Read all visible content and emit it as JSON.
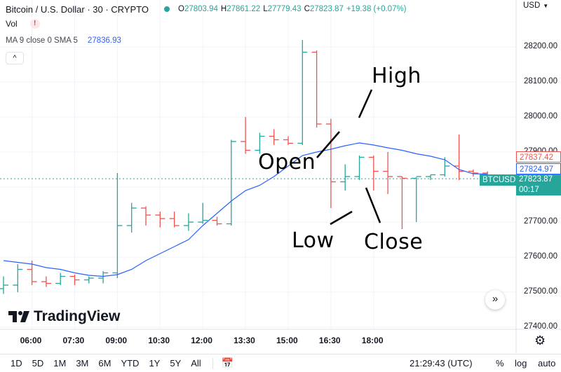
{
  "header": {
    "symbol_title": "Bitcoin / U.S. Dollar · 30 · CRYPTO",
    "ohlc": [
      {
        "key": "O",
        "value": "27803.94"
      },
      {
        "key": "H",
        "value": "27861.22"
      },
      {
        "key": "L",
        "value": "27779.43"
      },
      {
        "key": "C",
        "value": "27823.87"
      }
    ],
    "change": "+19.38 (+0.07%)",
    "volume_label": "Vol",
    "volume_warning": "!",
    "ma_label": "MA 9 close 0 SMA 5",
    "ma_value": "27836.93",
    "collapse_icon": "^"
  },
  "currency": "USD",
  "tags": {
    "last_price": "27837.42",
    "ma_price": "27824.97",
    "symbol": "BTCUSD",
    "current_price": "27823.87",
    "countdown": "00:17"
  },
  "annotations": {
    "high": "High",
    "open": "Open",
    "low": "Low",
    "close": "Close"
  },
  "brand": "TradingView",
  "bottom_bar": {
    "ranges": [
      "1D",
      "5D",
      "1M",
      "3M",
      "6M",
      "YTD",
      "1Y",
      "5Y",
      "All"
    ],
    "clock": "21:29:43 (UTC)",
    "percent": "%",
    "log": "log",
    "auto": "auto"
  },
  "colors": {
    "up": "#26a69a",
    "down": "#ef5350",
    "ma_line": "#2962ff",
    "grid": "#f0f3fa"
  },
  "chart_data": {
    "type": "ohlc",
    "series_name": "BTCUSD",
    "price_axis": {
      "ticks": [
        27400,
        27500,
        27600,
        27700,
        27800,
        27900,
        28000,
        28100,
        28200
      ],
      "tick_labels": [
        "27400.00",
        "27500.00",
        "27600.00",
        "27700.00",
        "27800.00",
        "27900.00",
        "28000.00",
        "28100.00",
        "28200.00"
      ],
      "range": [
        27385,
        28290
      ]
    },
    "time_axis": {
      "labels": [
        "06:00",
        "07:30",
        "09:00",
        "10:30",
        "12:00",
        "13:30",
        "15:00",
        "16:30",
        "18:00"
      ],
      "label_index": [
        2,
        5,
        8,
        11,
        14,
        17,
        20,
        23,
        26
      ]
    },
    "bars": [
      {
        "o": 27510,
        "h": 27545,
        "l": 27495,
        "c": 27520
      },
      {
        "o": 27520,
        "h": 27580,
        "l": 27500,
        "c": 27565
      },
      {
        "o": 27565,
        "h": 27590,
        "l": 27520,
        "c": 27530
      },
      {
        "o": 27530,
        "h": 27545,
        "l": 27515,
        "c": 27525
      },
      {
        "o": 27525,
        "h": 27555,
        "l": 27520,
        "c": 27545
      },
      {
        "o": 27545,
        "h": 27550,
        "l": 27520,
        "c": 27535
      },
      {
        "o": 27535,
        "h": 27545,
        "l": 27525,
        "c": 27540
      },
      {
        "o": 27540,
        "h": 27560,
        "l": 27525,
        "c": 27555
      },
      {
        "o": 27555,
        "h": 27840,
        "l": 27540,
        "c": 27690
      },
      {
        "o": 27690,
        "h": 27755,
        "l": 27670,
        "c": 27740
      },
      {
        "o": 27740,
        "h": 27745,
        "l": 27690,
        "c": 27720
      },
      {
        "o": 27720,
        "h": 27730,
        "l": 27685,
        "c": 27710
      },
      {
        "o": 27710,
        "h": 27730,
        "l": 27685,
        "c": 27690
      },
      {
        "o": 27690,
        "h": 27725,
        "l": 27675,
        "c": 27700
      },
      {
        "o": 27700,
        "h": 27755,
        "l": 27695,
        "c": 27705
      },
      {
        "o": 27705,
        "h": 27715,
        "l": 27690,
        "c": 27695
      },
      {
        "o": 27695,
        "h": 27935,
        "l": 27690,
        "c": 27930
      },
      {
        "o": 27930,
        "h": 28000,
        "l": 27895,
        "c": 27905
      },
      {
        "o": 27905,
        "h": 27955,
        "l": 27895,
        "c": 27945
      },
      {
        "o": 27945,
        "h": 27965,
        "l": 27920,
        "c": 27935
      },
      {
        "o": 27935,
        "h": 27945,
        "l": 27920,
        "c": 27925
      },
      {
        "o": 27925,
        "h": 28220,
        "l": 27920,
        "c": 28185
      },
      {
        "o": 28185,
        "h": 28190,
        "l": 27970,
        "c": 27980
      },
      {
        "o": 27980,
        "h": 27995,
        "l": 27740,
        "c": 27815
      },
      {
        "o": 27815,
        "h": 27865,
        "l": 27790,
        "c": 27830
      },
      {
        "o": 27830,
        "h": 27890,
        "l": 27820,
        "c": 27885
      },
      {
        "o": 27885,
        "h": 27890,
        "l": 27790,
        "c": 27845
      },
      {
        "o": 27845,
        "h": 27900,
        "l": 27780,
        "c": 27830
      },
      {
        "o": 27830,
        "h": 27830,
        "l": 27680,
        "c": 27825
      },
      {
        "o": 27825,
        "h": 27828,
        "l": 27700,
        "c": 27830
      },
      {
        "o": 27830,
        "h": 27835,
        "l": 27820,
        "c": 27835
      },
      {
        "o": 27835,
        "h": 27885,
        "l": 27830,
        "c": 27860
      },
      {
        "o": 27860,
        "h": 27950,
        "l": 27820,
        "c": 27845
      },
      {
        "o": 27845,
        "h": 27850,
        "l": 27830,
        "c": 27840
      },
      {
        "o": 27840,
        "h": 27845,
        "l": 27805,
        "c": 27824
      }
    ],
    "ma_line": [
      27590,
      27585,
      27580,
      27570,
      27565,
      27555,
      27548,
      27545,
      27550,
      27565,
      27590,
      27610,
      27630,
      27650,
      27690,
      27725,
      27760,
      27790,
      27805,
      27830,
      27860,
      27890,
      27900,
      27908,
      27918,
      27926,
      27920,
      27912,
      27905,
      27895,
      27888,
      27878,
      27850,
      27838,
      27837
    ],
    "last_price_line": 27823.87
  }
}
